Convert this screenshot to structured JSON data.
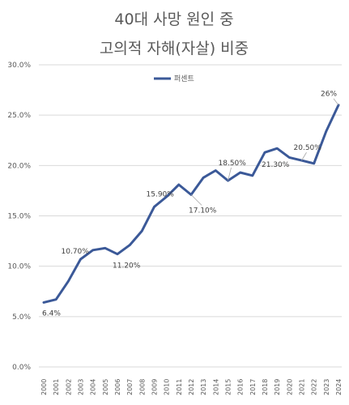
{
  "chart_data": {
    "type": "line",
    "title_lines": [
      "40대 사망 원인 중",
      "고의적 자해(자살) 비중"
    ],
    "legend_position": "top-center",
    "grid": true,
    "ylim": [
      0,
      30
    ],
    "yticks": [
      "0.0%",
      "5.0%",
      "10.0%",
      "15.0%",
      "20.0%",
      "25.0%",
      "30.0%"
    ],
    "categories": [
      "2000",
      "2001",
      "2002",
      "2003",
      "2004",
      "2005",
      "2006",
      "2007",
      "2008",
      "2009",
      "2010",
      "2011",
      "2012",
      "2013",
      "2014",
      "2015",
      "2016",
      "2017",
      "2018",
      "2019",
      "2020",
      "2021",
      "2022",
      "2023",
      "2024"
    ],
    "series": [
      {
        "name": "퍼센트",
        "color": "#3b5998",
        "values": [
          6.4,
          6.7,
          8.5,
          10.7,
          11.6,
          11.8,
          11.2,
          12.1,
          13.5,
          15.9,
          16.9,
          18.1,
          17.1,
          18.8,
          19.5,
          18.5,
          19.3,
          19.0,
          21.3,
          21.7,
          20.8,
          20.5,
          20.2,
          23.4,
          26.0
        ]
      }
    ],
    "data_labels": [
      {
        "index": 0,
        "text": "6.4%"
      },
      {
        "index": 3,
        "text": "10.70%"
      },
      {
        "index": 6,
        "text": "11.20%"
      },
      {
        "index": 9,
        "text": "15.90%"
      },
      {
        "index": 12,
        "text": "17.10%"
      },
      {
        "index": 15,
        "text": "18.50%"
      },
      {
        "index": 18,
        "text": "21.30%"
      },
      {
        "index": 21,
        "text": "20.50%"
      },
      {
        "index": 24,
        "text": "26%"
      }
    ]
  }
}
